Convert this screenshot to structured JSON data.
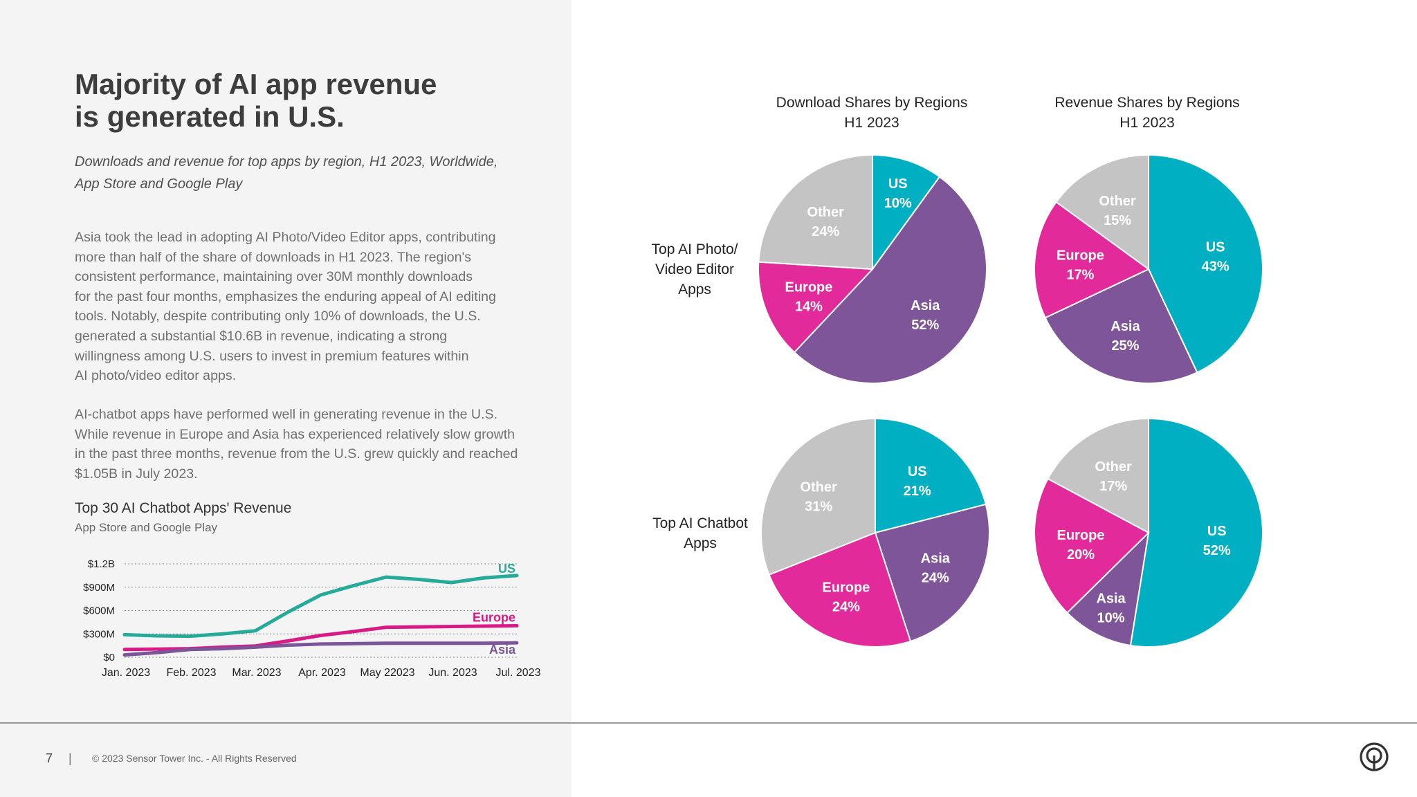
{
  "headline": {
    "line1": "Majority of AI app revenue",
    "line2": "is generated in U.S."
  },
  "subtitle": {
    "line1": "Downloads and revenue for top apps by region, H1 2023, Worldwide,",
    "line2": "App Store and Google Play"
  },
  "body": {
    "para1": [
      "Asia took the lead in adopting AI Photo/Video Editor apps, contributing",
      "more than half of the share of downloads in H1 2023. The region's",
      "consistent performance, maintaining over 30M monthly downloads",
      "for the past four months, emphasizes the enduring appeal of AI editing",
      "tools. Notably, despite contributing only 10% of downloads, the U.S.",
      "generated a substantial $10.6B in revenue, indicating a strong",
      "willingness among U.S. users to invest in premium features within",
      "AI photo/video editor apps."
    ],
    "para2": [
      "AI-chatbot apps have performed well in generating revenue in the U.S.",
      "While revenue in Europe and Asia has experienced relatively slow growth",
      "in the past three months, revenue from the U.S. grew quickly and reached",
      "$1.05B in July 2023."
    ]
  },
  "colors": {
    "US": "#00afc2",
    "Europe": "#e22a9b",
    "Asia": "#7f5599",
    "Other": "#c4c4c4",
    "US_line": "#26ab9a",
    "Europe_line": "#d81b84",
    "Asia_line": "#7b559a"
  },
  "chart_data": [
    {
      "type": "line",
      "title": "Top 30 AI Chatbot Apps' Revenue",
      "subtitle": "App Store and Google Play",
      "categories": [
        "Jan. 2023",
        "Feb. 2023",
        "Mar. 2023",
        "Apr. 2023",
        "May 22023",
        "Jun. 2023",
        "Jul. 2023"
      ],
      "y_ticks": [
        {
          "value": 1200000000,
          "label": "$1.2B"
        },
        {
          "value": 900000000,
          "label": "$900M"
        },
        {
          "value": 600000000,
          "label": "$600M"
        },
        {
          "value": 300000000,
          "label": "$300M"
        },
        {
          "value": 0,
          "label": "$0"
        }
      ],
      "ylim": [
        0,
        1200000000
      ],
      "grid": true,
      "x": [
        0,
        0.5,
        1,
        1.5,
        2,
        2.5,
        3,
        3.5,
        4,
        4.5,
        5,
        5.5,
        6
      ],
      "series": [
        {
          "name": "US",
          "values": [
            290000000,
            275000000,
            270000000,
            300000000,
            340000000,
            580000000,
            800000000,
            920000000,
            1030000000,
            1000000000,
            960000000,
            1020000000,
            1050000000
          ]
        },
        {
          "name": "Europe",
          "values": [
            100000000,
            105000000,
            110000000,
            130000000,
            145000000,
            210000000,
            280000000,
            330000000,
            385000000,
            390000000,
            395000000,
            400000000,
            405000000
          ]
        },
        {
          "name": "Asia",
          "values": [
            30000000,
            60000000,
            100000000,
            110000000,
            130000000,
            155000000,
            170000000,
            175000000,
            180000000,
            180000000,
            180000000,
            180000000,
            185000000
          ]
        }
      ]
    },
    {
      "type": "pie",
      "title": "Download Shares by Regions H1 2023",
      "row": "Top AI Photo/ Video Editor Apps",
      "slices": [
        {
          "name": "US",
          "pct_label": "10%",
          "value": 10
        },
        {
          "name": "Asia",
          "pct_label": "52%",
          "value": 52
        },
        {
          "name": "Europe",
          "pct_label": "14%",
          "value": 14
        },
        {
          "name": "Other",
          "pct_label": "24%",
          "value": 24
        }
      ]
    },
    {
      "type": "pie",
      "title": "Revenue Shares by Regions H1 2023",
      "row": "Top AI Photo/ Video Editor Apps",
      "slices": [
        {
          "name": "US",
          "pct_label": "43%",
          "value": 43
        },
        {
          "name": "Asia",
          "pct_label": "25%",
          "value": 25
        },
        {
          "name": "Europe",
          "pct_label": "17%",
          "value": 17
        },
        {
          "name": "Other",
          "pct_label": "15%",
          "value": 15
        }
      ]
    },
    {
      "type": "pie",
      "title": "Download Shares by Regions H1 2023",
      "row": "Top AI Chatbot Apps",
      "slices": [
        {
          "name": "US",
          "pct_label": "21%",
          "value": 21
        },
        {
          "name": "Asia",
          "pct_label": "24%",
          "value": 24
        },
        {
          "name": "Europe",
          "pct_label": "24%",
          "value": 24
        },
        {
          "name": "Other",
          "pct_label": "31%",
          "value": 31
        }
      ]
    },
    {
      "type": "pie",
      "title": "Revenue Shares by Regions H1 2023",
      "row": "Top AI Chatbot Apps",
      "slices": [
        {
          "name": "US",
          "pct_label": "52%",
          "value": 52
        },
        {
          "name": "Asia",
          "pct_label": "10%",
          "value": 10
        },
        {
          "name": "Europe",
          "pct_label": "20%",
          "value": 20
        },
        {
          "name": "Other",
          "pct_label": "17%",
          "value": 17
        }
      ]
    }
  ],
  "pie_headers": {
    "downloads": {
      "line1": "Download Shares by Regions",
      "line2": "H1 2023"
    },
    "revenue": {
      "line1": "Revenue Shares by Regions",
      "line2": "H1 2023"
    }
  },
  "row_labels": {
    "photo": [
      "Top AI Photo/",
      "Video Editor",
      "Apps"
    ],
    "chatbot": [
      "Top AI Chatbot",
      "Apps"
    ]
  },
  "footer": {
    "page_number": "7",
    "separator": "|",
    "copyright": "© 2023 Sensor Tower Inc. - All Rights Reserved",
    "logo_icon": "sensor-tower-logo-icon"
  }
}
